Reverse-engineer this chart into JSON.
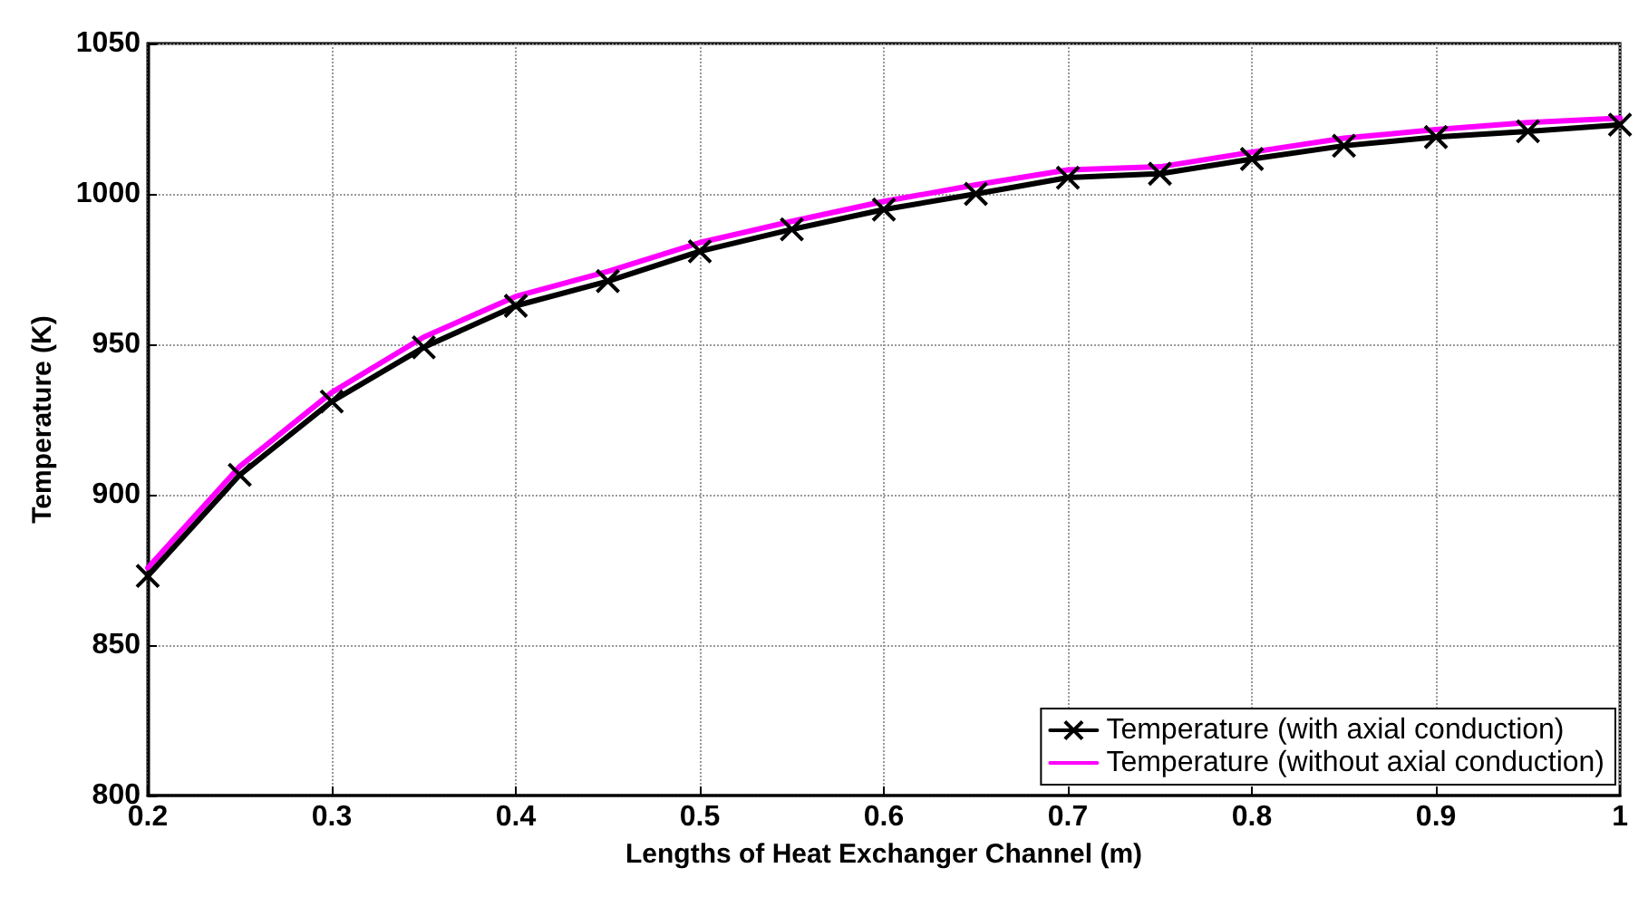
{
  "chart_data": {
    "type": "line",
    "xlabel": "Lengths of Heat Exchanger Channel (m)",
    "ylabel": "Temperature (K)",
    "x": [
      0.2,
      0.25,
      0.3,
      0.35,
      0.4,
      0.45,
      0.5,
      0.55,
      0.6,
      0.65,
      0.7,
      0.75,
      0.8,
      0.85,
      0.9,
      0.95,
      1.0
    ],
    "series": [
      {
        "name": "Temperature (with axial conduction)",
        "color": "#000000",
        "marker": "cross",
        "values": [
          873,
          906.6,
          931,
          949,
          962.8,
          971,
          980.9,
          988.2,
          994.8,
          1000,
          1005.4,
          1006.7,
          1011.6,
          1016,
          1018.9,
          1020.8,
          1023
        ]
      },
      {
        "name": "Temperature (without axial conduction)",
        "color": "#ff00ff",
        "marker": "none",
        "values": [
          875.7,
          909.4,
          934,
          952.4,
          965.9,
          974.2,
          983.8,
          990.9,
          997.5,
          1003,
          1008,
          1009,
          1013.9,
          1018.5,
          1021.4,
          1023.7,
          1025.2
        ]
      }
    ],
    "xlim": [
      0.2,
      1
    ],
    "xticks": [
      0.2,
      0.3,
      0.4,
      0.5,
      0.6,
      0.7,
      0.8,
      0.9,
      1
    ],
    "ylim": [
      800,
      1050
    ],
    "yticks": [
      800,
      850,
      900,
      950,
      1000,
      1050
    ],
    "grid": true,
    "legend": "bottom right",
    "line_style": "solid"
  }
}
